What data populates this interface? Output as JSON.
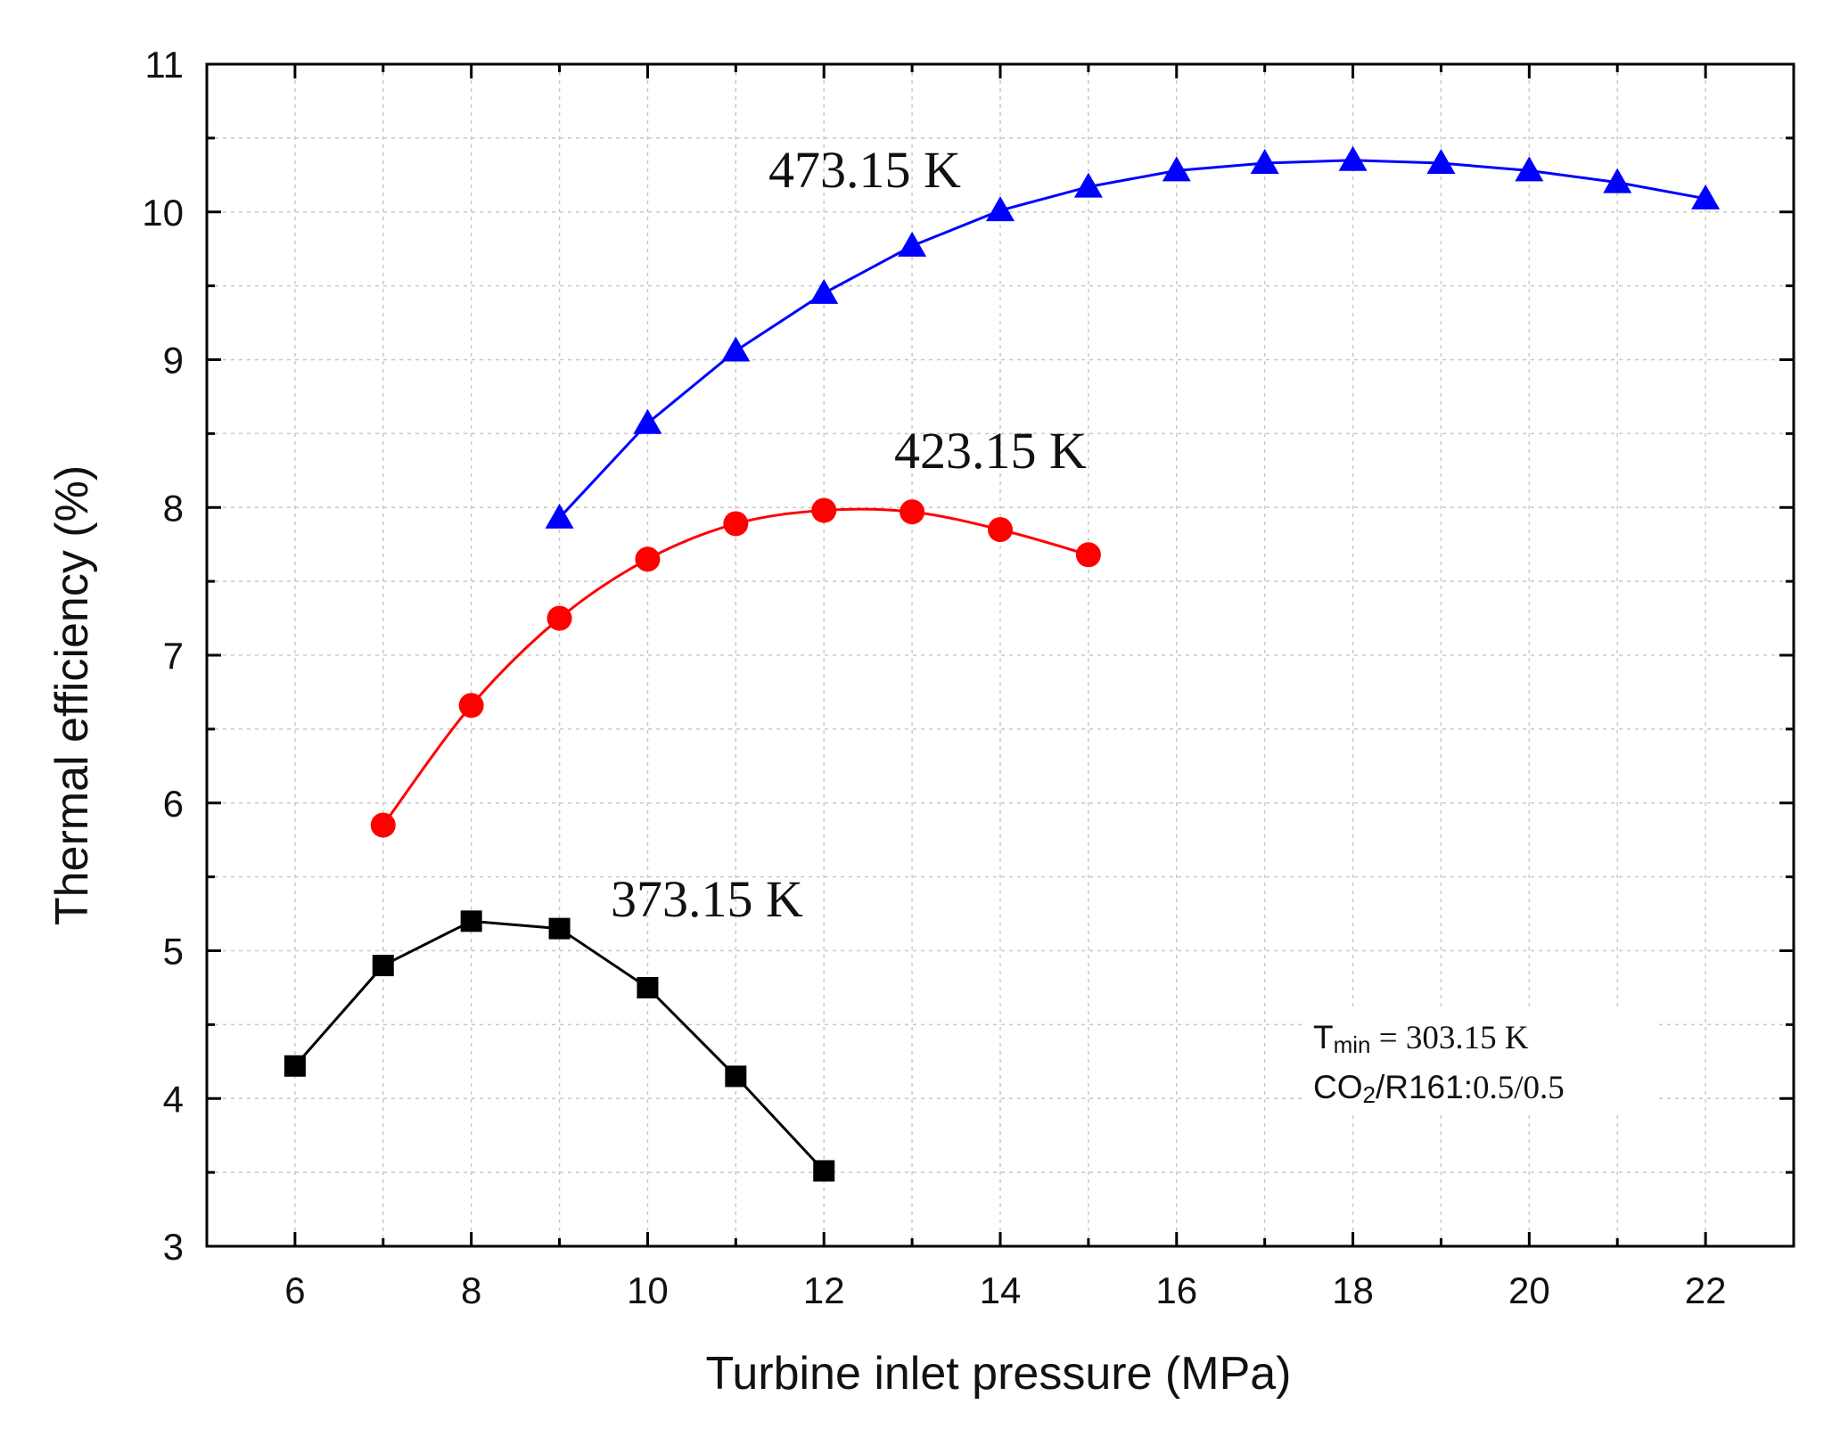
{
  "chart_data": {
    "type": "line",
    "title": "",
    "xlabel": "Turbine inlet pressure (MPa)",
    "ylabel": "Thermal efficiency (%)",
    "xlim": [
      5,
      23
    ],
    "ylim": [
      3,
      11
    ],
    "xticks": [
      6,
      8,
      10,
      12,
      14,
      16,
      18,
      20,
      22
    ],
    "yticks": [
      3,
      4,
      5,
      6,
      7,
      8,
      9,
      10,
      11
    ],
    "grid": true,
    "series": [
      {
        "name": "373.15 K",
        "label": "373.15 K",
        "color": "#000000",
        "marker": "square",
        "x": [
          6,
          7,
          8,
          9,
          10,
          11,
          12
        ],
        "y": [
          4.22,
          4.9,
          5.2,
          5.15,
          4.75,
          4.15,
          3.51
        ]
      },
      {
        "name": "423.15 K",
        "label": "423.15 K",
        "color": "#ff0000",
        "marker": "circle",
        "x": [
          7,
          8,
          9,
          10,
          11,
          12,
          13,
          14,
          15
        ],
        "y": [
          5.85,
          6.66,
          7.25,
          7.65,
          7.89,
          7.98,
          7.97,
          7.85,
          7.68
        ]
      },
      {
        "name": "473.15 K",
        "label": "473.15 K",
        "color": "#0000ff",
        "marker": "triangle",
        "x": [
          9,
          10,
          11,
          12,
          13,
          14,
          15,
          16,
          17,
          18,
          19,
          20,
          21,
          22
        ],
        "y": [
          7.93,
          8.57,
          9.06,
          9.45,
          9.77,
          10.01,
          10.17,
          10.28,
          10.33,
          10.35,
          10.33,
          10.28,
          10.2,
          10.09
        ]
      }
    ],
    "annotation": {
      "line1_prefix": "T",
      "line1_sub": "min",
      "line1_rest": " = 303.15 K",
      "line2_prefix": "CO",
      "line2_sub": "2",
      "line2_mid": "/R161:",
      "line2_rest": "0.5/0.5"
    }
  }
}
